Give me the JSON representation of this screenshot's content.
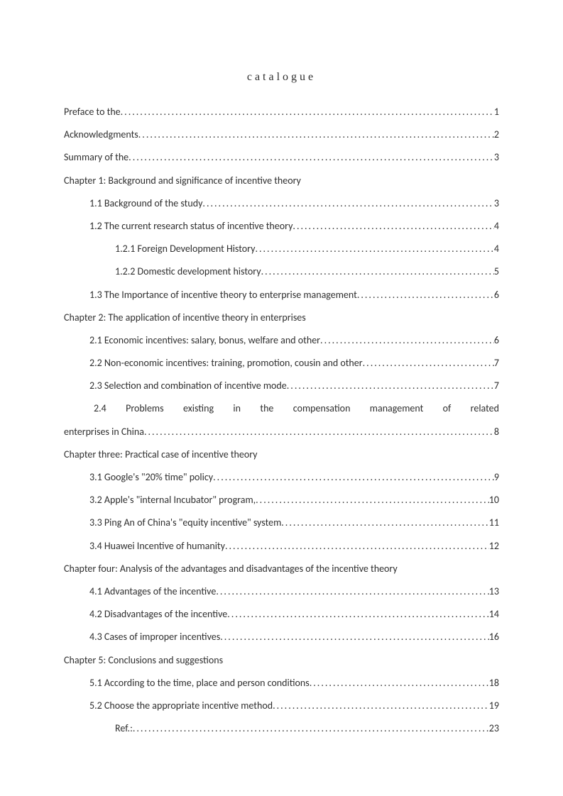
{
  "title": "catalogue",
  "entries": [
    {
      "type": "dotted",
      "indent": 0,
      "label": "Preface to the",
      "page": "1"
    },
    {
      "type": "dotted",
      "indent": 0,
      "label": "Acknowledgments",
      "page": "2"
    },
    {
      "type": "dotted",
      "indent": 0,
      "label": "Summary of the",
      "page": "3"
    },
    {
      "type": "heading",
      "indent": 0,
      "label": "Chapter 1: Background and significance of incentive theory"
    },
    {
      "type": "dotted",
      "indent": 1,
      "label": "1.1 Background of the study",
      "page": "3"
    },
    {
      "type": "dotted",
      "indent": 1,
      "label": "1.2 The current research status of incentive theory",
      "page": "4"
    },
    {
      "type": "dotted",
      "indent": 2,
      "label": "1.2.1 Foreign Development History",
      "page": "4"
    },
    {
      "type": "dotted",
      "indent": 2,
      "label": "1.2.2 Domestic development history",
      "page": "5"
    },
    {
      "type": "dotted",
      "indent": 1,
      "label": "1.3 The Importance of incentive theory to enterprise management",
      "page": "6"
    },
    {
      "type": "heading",
      "indent": 0,
      "label": "Chapter 2: The application of incentive theory in enterprises"
    },
    {
      "type": "dotted",
      "indent": 1,
      "label": "2.1 Economic incentives: salary, bonus, welfare and other",
      "page": "6"
    },
    {
      "type": "dotted",
      "indent": 1,
      "label": "2.2 Non-economic incentives: training, promotion, cousin and other",
      "page": "7"
    },
    {
      "type": "dotted",
      "indent": 1,
      "label": "2.3 Selection and combination of incentive mode",
      "page": "7"
    },
    {
      "type": "justified",
      "label": "2.4 Problems existing in the compensation management of related"
    },
    {
      "type": "dotted",
      "indent": 0,
      "label": "enterprises in China",
      "page": "8"
    },
    {
      "type": "heading",
      "indent": 0,
      "label": "Chapter three: Practical case of incentive theory"
    },
    {
      "type": "dotted",
      "indent": 1,
      "label": "3.1 Google's \"20% time\" policy",
      "page": "9"
    },
    {
      "type": "dotted",
      "indent": 1,
      "label": "3.2 Apple's \"internal Incubator\" program,",
      "page": "10"
    },
    {
      "type": "dotted",
      "indent": 1,
      "label": "3.3 Ping An of China's \"equity incentive\" system",
      "page": "11"
    },
    {
      "type": "dotted",
      "indent": 1,
      "label": "3.4 Huawei Incentive of humanity",
      "page": "12"
    },
    {
      "type": "heading",
      "indent": 0,
      "label": "Chapter four: Analysis of the advantages and disadvantages of the incentive theory"
    },
    {
      "type": "dotted",
      "indent": 1,
      "label": "4.1 Advantages of the incentive",
      "page": "13"
    },
    {
      "type": "dotted",
      "indent": 1,
      "label": "4.2 Disadvantages of the incentive",
      "page": "14"
    },
    {
      "type": "dotted",
      "indent": 1,
      "label": "4.3 Cases of improper incentives",
      "page": "16"
    },
    {
      "type": "heading",
      "indent": 0,
      "label": "Chapter 5: Conclusions and suggestions"
    },
    {
      "type": "dotted",
      "indent": 1,
      "label": "5.1 According to the time, place and person conditions",
      "page": "18"
    },
    {
      "type": "dotted",
      "indent": 1,
      "label": "5.2 Choose the appropriate incentive method",
      "page": "19"
    },
    {
      "type": "dotted",
      "indent": 2,
      "label": "Ref.:",
      "page": "23"
    }
  ],
  "dots": "..............................................................................................................................."
}
